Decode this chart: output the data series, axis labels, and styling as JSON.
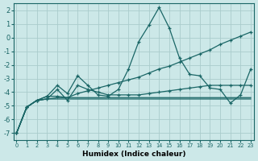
{
  "xlabel": "Humidex (Indice chaleur)",
  "ylabel": "",
  "background_color": "#cce8e8",
  "grid_color": "#aacccc",
  "line_color": "#1a6666",
  "xlim": [
    -0.3,
    23.3
  ],
  "ylim": [
    -7.5,
    2.5
  ],
  "xticks": [
    0,
    1,
    2,
    3,
    4,
    5,
    6,
    7,
    8,
    9,
    10,
    11,
    12,
    13,
    14,
    15,
    16,
    17,
    18,
    19,
    20,
    21,
    22,
    23
  ],
  "yticks": [
    -7,
    -6,
    -5,
    -4,
    -3,
    -2,
    -1,
    0,
    1,
    2
  ],
  "series": [
    {
      "x": [
        0,
        1,
        2,
        3,
        4,
        5,
        6,
        7,
        8,
        9,
        10,
        11,
        12,
        13,
        14,
        15,
        16,
        17,
        18,
        19,
        20,
        21,
        22,
        23
      ],
      "y": [
        -7.0,
        -5.1,
        -4.6,
        -4.3,
        -3.5,
        -4.1,
        -2.8,
        -3.5,
        -4.2,
        -4.3,
        -3.8,
        -2.3,
        -0.3,
        0.9,
        2.2,
        0.7,
        -1.5,
        -2.7,
        -2.8,
        -3.7,
        -3.8,
        -4.8,
        -4.2,
        -2.3
      ],
      "marker": true
    },
    {
      "x": [
        0,
        1,
        2,
        3,
        4,
        5,
        6,
        7,
        8,
        9,
        10,
        11,
        12,
        13,
        14,
        15,
        16,
        17,
        18,
        19,
        20,
        21,
        22,
        23
      ],
      "y": [
        -7.0,
        -5.1,
        -4.6,
        -4.3,
        -4.3,
        -4.4,
        -4.1,
        -3.9,
        -3.7,
        -3.5,
        -3.3,
        -3.1,
        -2.9,
        -2.6,
        -2.3,
        -2.1,
        -1.8,
        -1.5,
        -1.2,
        -0.9,
        -0.5,
        -0.2,
        0.1,
        0.4
      ],
      "marker": true
    },
    {
      "x": [
        0,
        1,
        2,
        3,
        4,
        5,
        6,
        7,
        8,
        9,
        10,
        11,
        12,
        13,
        14,
        15,
        16,
        17,
        18,
        19,
        20,
        21,
        22,
        23
      ],
      "y": [
        -7.0,
        -5.1,
        -4.6,
        -4.5,
        -3.8,
        -4.6,
        -3.5,
        -3.8,
        -4.0,
        -4.2,
        -4.2,
        -4.2,
        -4.2,
        -4.1,
        -4.0,
        -3.9,
        -3.8,
        -3.7,
        -3.6,
        -3.5,
        -3.5,
        -3.5,
        -3.5,
        -3.5
      ],
      "marker": true
    },
    {
      "x": [
        0,
        1,
        2,
        3,
        4,
        5,
        6,
        7,
        8,
        9,
        10,
        11,
        12,
        13,
        14,
        15,
        16,
        17,
        18,
        19,
        20,
        21,
        22,
        23
      ],
      "y": [
        -7.0,
        -5.1,
        -4.6,
        -4.5,
        -4.5,
        -4.5,
        -4.5,
        -4.5,
        -4.5,
        -4.5,
        -4.5,
        -4.5,
        -4.5,
        -4.5,
        -4.5,
        -4.5,
        -4.5,
        -4.5,
        -4.5,
        -4.5,
        -4.5,
        -4.5,
        -4.5,
        -4.5
      ],
      "marker": false
    },
    {
      "x": [
        0,
        1,
        2,
        3,
        4,
        5,
        6,
        7,
        8,
        9,
        10,
        11,
        12,
        13,
        14,
        15,
        16,
        17,
        18,
        19,
        20,
        21,
        22,
        23
      ],
      "y": [
        -7.0,
        -5.1,
        -4.6,
        -4.5,
        -4.4,
        -4.4,
        -4.4,
        -4.4,
        -4.4,
        -4.4,
        -4.4,
        -4.4,
        -4.4,
        -4.4,
        -4.4,
        -4.4,
        -4.4,
        -4.4,
        -4.4,
        -4.4,
        -4.4,
        -4.4,
        -4.4,
        -4.4
      ],
      "marker": false
    }
  ]
}
